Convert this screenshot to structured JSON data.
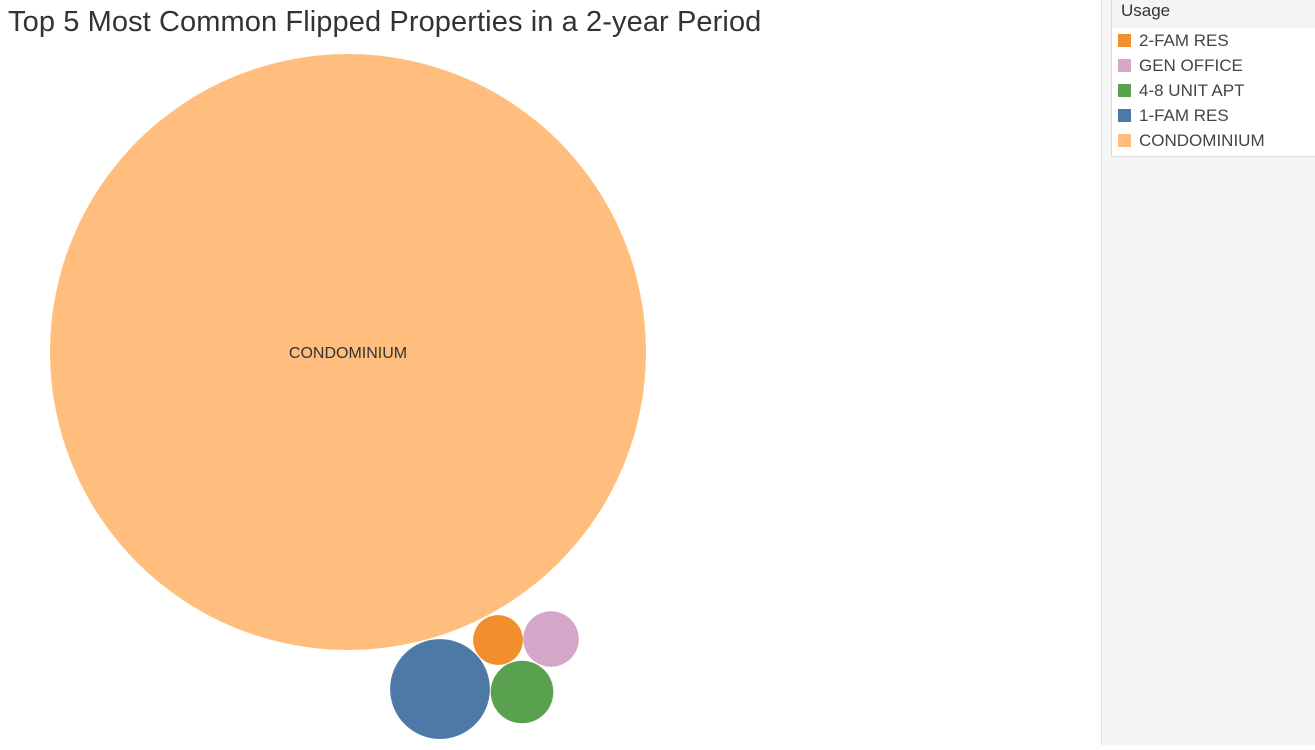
{
  "title": "Top 5 Most Common Flipped Properties in a 2-year Period",
  "legend": {
    "title": "Usage",
    "items": [
      {
        "label": "2-FAM RES",
        "color": "#f28e2b"
      },
      {
        "label": "GEN OFFICE",
        "color": "#d4a6c8"
      },
      {
        "label": "4-8 UNIT APT",
        "color": "#59a14f"
      },
      {
        "label": "1-FAM RES",
        "color": "#4e79a7"
      },
      {
        "label": "CONDOMINIUM",
        "color": "#ffbe7d"
      }
    ]
  },
  "chart_data": {
    "type": "bubble",
    "title": "Top 5 Most Common Flipped Properties in a 2-year Period",
    "legend_title": "Usage",
    "legend_placement": "top-right",
    "size_scale": "area",
    "series": [
      {
        "name": "CONDOMINIUM",
        "value": 100,
        "color": "#ffbe7d",
        "label": "CONDOMINIUM"
      },
      {
        "name": "1-FAM RES",
        "value": 2.8,
        "color": "#4e79a7",
        "label": ""
      },
      {
        "name": "4-8 UNIT APT",
        "value": 1.1,
        "color": "#59a14f",
        "label": ""
      },
      {
        "name": "GEN OFFICE",
        "value": 0.87,
        "color": "#d4a6c8",
        "label": ""
      },
      {
        "name": "2-FAM RES",
        "value": 0.7,
        "color": "#f28e2b",
        "label": ""
      }
    ]
  }
}
